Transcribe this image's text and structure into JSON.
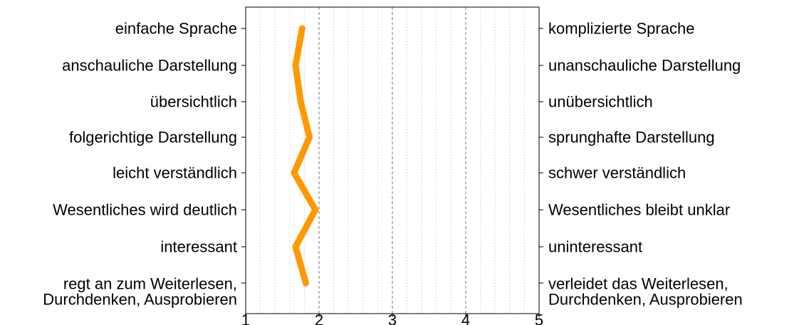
{
  "chart_data": {
    "type": "line",
    "title": "",
    "xlabel": "",
    "ylabel": "",
    "xlim": [
      1,
      5
    ],
    "x_ticks": [
      "1",
      "2",
      "3",
      "4",
      "5"
    ],
    "grid": "vertical dashed lines at every 0.2 (darker at integers)",
    "left_labels": [
      [
        "einfache Sprache"
      ],
      [
        "anschauliche Darstellung"
      ],
      [
        "übersichtlich"
      ],
      [
        "folgerichtige Darstellung"
      ],
      [
        "leicht verständlich"
      ],
      [
        "Wesentliches wird deutlich"
      ],
      [
        "interessant"
      ],
      [
        "regt an zum Weiterlesen,",
        "Durchdenken, Ausprobieren"
      ]
    ],
    "right_labels": [
      [
        "komplizierte Sprache"
      ],
      [
        "unanschauliche Darstellung"
      ],
      [
        "unübersichtlich"
      ],
      [
        "sprunghafte Darstellung"
      ],
      [
        "schwer verständlich"
      ],
      [
        "Wesentliches bleibt unklar"
      ],
      [
        "uninteressant"
      ],
      [
        "verleidet das Weiterlesen,",
        "Durchdenken, Ausprobieren"
      ]
    ],
    "values": [
      1.77,
      1.68,
      1.75,
      1.87,
      1.66,
      1.95,
      1.68,
      1.82
    ],
    "line_color": "#FF9900"
  }
}
